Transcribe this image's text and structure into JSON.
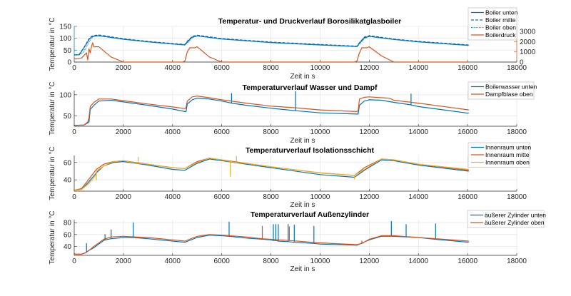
{
  "colors": {
    "blue": "#0072BD",
    "orange": "#D95319",
    "yellow": "#EDB120",
    "grid": "#e6e6e6",
    "axis": "#262626"
  },
  "chart_data": [
    {
      "type": "line",
      "title": "Temperatur- und Druckverlauf Borosilikatglasboiler",
      "xlabel": "Zeit in s",
      "ylabel": "Temperatur in °C",
      "xlim": [
        0,
        18000
      ],
      "ylim": [
        0,
        150
      ],
      "xticks": [
        0,
        2000,
        4000,
        6000,
        8000,
        10000,
        12000,
        14000,
        16000,
        18000
      ],
      "yticks": [
        0,
        50,
        100,
        150
      ],
      "y2lim": [
        0,
        3500
      ],
      "y2ticks": [
        0,
        1000,
        2000,
        3000
      ],
      "legend": "top-right",
      "series": [
        {
          "name": "Boiler unten",
          "axis": "left",
          "style": "solid",
          "color": "blue",
          "x": [
            0,
            200,
            400,
            600,
            700,
            800,
            1000,
            2000,
            3000,
            4000,
            4500,
            4600,
            4800,
            5000,
            6000,
            8000,
            10000,
            11500,
            11600,
            11800,
            12000,
            13000,
            14000,
            16050
          ],
          "y": [
            30,
            31,
            60,
            95,
            105,
            109,
            111,
            96,
            85,
            76,
            72,
            85,
            105,
            110,
            97,
            82,
            72,
            65,
            80,
            102,
            108,
            95,
            85,
            70
          ]
        },
        {
          "name": "Boiler mitte",
          "axis": "left",
          "style": "dashed",
          "color": "blue",
          "x": [
            0,
            200,
            400,
            600,
            700,
            800,
            1000,
            2000,
            3000,
            4000,
            4500,
            4600,
            4800,
            5000,
            6000,
            8000,
            10000,
            11500,
            11600,
            11800,
            12000,
            13000,
            14000,
            16050
          ],
          "y": [
            30,
            32,
            62,
            98,
            108,
            112,
            114,
            98,
            87,
            78,
            74,
            88,
            108,
            113,
            99,
            84,
            74,
            67,
            82,
            105,
            111,
            97,
            87,
            72
          ]
        },
        {
          "name": "Boiler oben",
          "axis": "left",
          "style": "dotted",
          "color": "blue",
          "x": [
            0,
            200,
            400,
            600,
            700,
            800,
            1000,
            2000,
            3000,
            4000,
            4500,
            4600,
            4800,
            5000,
            6000,
            8000,
            10000,
            11500,
            11600,
            11800,
            12000,
            13000,
            14000,
            16050
          ],
          "y": [
            30,
            30,
            45,
            85,
            100,
            108,
            111,
            96,
            85,
            76,
            72,
            80,
            102,
            110,
            97,
            82,
            72,
            65,
            74,
            98,
            108,
            95,
            85,
            70
          ]
        },
        {
          "name": "Boilerdruck",
          "axis": "right",
          "style": "solid",
          "color": "orange",
          "x": [
            0,
            300,
            500,
            550,
            600,
            650,
            700,
            750,
            800,
            1000,
            1500,
            2000,
            4400,
            4500,
            4600,
            4700,
            4900,
            5000,
            5500,
            6000,
            11400,
            11500,
            11600,
            11700,
            11900,
            12000,
            12500,
            13000,
            16050
          ],
          "y": [
            300,
            400,
            900,
            200,
            1300,
            900,
            1500,
            1900,
            1500,
            1500,
            500,
            0,
            0,
            100,
            1000,
            1400,
            1400,
            1500,
            500,
            0,
            0,
            100,
            900,
            1400,
            1400,
            1500,
            600,
            0,
            0
          ]
        }
      ]
    },
    {
      "type": "line",
      "title": "Temperaturverlauf Wasser und Dampf",
      "xlabel": "Zeit in s",
      "ylabel": "Temperatur in °C",
      "xlim": [
        0,
        18000
      ],
      "ylim": [
        25,
        110
      ],
      "xticks": [
        0,
        2000,
        4000,
        6000,
        8000,
        10000,
        12000,
        14000,
        16000,
        18000
      ],
      "yticks": [
        50,
        100
      ],
      "legend": "top-right",
      "series": [
        {
          "name": "Boilerwasser unten",
          "color": "blue",
          "x": [
            0,
            400,
            550,
            600,
            650,
            800,
            1000,
            1500,
            2000,
            3000,
            4000,
            4500,
            4550,
            4600,
            4800,
            5000,
            5500,
            6000,
            6400,
            6400,
            6400,
            7000,
            8000,
            9000,
            9000,
            9000,
            10000,
            11500,
            11550,
            11600,
            11800,
            12000,
            12500,
            13000,
            13700,
            13700,
            13700,
            14000,
            16050
          ],
          "y": [
            27,
            28,
            33,
            35,
            65,
            75,
            85,
            87,
            83,
            75,
            66,
            60,
            60,
            78,
            88,
            92,
            90,
            85,
            80,
            103,
            80,
            75,
            68,
            62,
            108,
            62,
            57,
            54,
            54,
            75,
            85,
            88,
            87,
            82,
            76,
            102,
            76,
            72,
            56
          ]
        },
        {
          "name": "Dampfblase oben",
          "color": "orange",
          "x": [
            0,
            400,
            550,
            600,
            650,
            800,
            1000,
            1500,
            2000,
            3000,
            4000,
            4500,
            4550,
            4600,
            4800,
            5000,
            5500,
            6000,
            7000,
            8000,
            9000,
            10000,
            11500,
            11550,
            11600,
            11800,
            12000,
            12500,
            12800,
            13000,
            14000,
            16050
          ],
          "y": [
            27,
            28,
            35,
            45,
            72,
            82,
            90,
            90,
            86,
            78,
            71,
            67,
            70,
            85,
            95,
            97,
            93,
            88,
            80,
            73,
            69,
            64,
            60,
            62,
            90,
            94,
            95,
            93,
            92,
            87,
            80,
            64
          ]
        }
      ]
    },
    {
      "type": "line",
      "title": "Temperaturverlauf Isolationsschicht",
      "xlabel": "Zeit in s",
      "ylabel": "Temperatur in °C",
      "xlim": [
        0,
        18000
      ],
      "ylim": [
        27,
        68
      ],
      "xticks": [
        0,
        2000,
        4000,
        6000,
        8000,
        10000,
        12000,
        14000,
        16000,
        18000
      ],
      "yticks": [
        40,
        60
      ],
      "legend": "top-right",
      "series": [
        {
          "name": "Innenraum unten",
          "color": "blue",
          "x": [
            0,
            300,
            600,
            900,
            1200,
            1600,
            2000,
            3000,
            4000,
            4500,
            5000,
            5500,
            6000,
            7000,
            8000,
            10000,
            11400,
            11800,
            12500,
            13000,
            14000,
            16050
          ],
          "y": [
            28,
            29,
            38,
            48,
            56,
            60,
            61,
            57,
            52,
            51,
            59,
            64,
            62,
            58,
            54,
            46,
            43,
            51,
            63,
            62,
            57,
            50
          ]
        },
        {
          "name": "Innenraum mitte",
          "color": "orange",
          "x": [
            0,
            300,
            600,
            900,
            1200,
            1600,
            2000,
            3000,
            4000,
            4500,
            5000,
            5500,
            6000,
            7000,
            8000,
            10000,
            11400,
            11800,
            12500,
            13000,
            14000,
            16050
          ],
          "y": [
            28,
            30,
            41,
            52,
            58,
            61,
            62,
            58,
            54,
            53,
            61,
            65,
            63,
            59,
            55,
            48,
            45,
            54,
            64,
            63,
            58,
            51
          ]
        },
        {
          "name": "Innenraum oben",
          "color": "yellow",
          "x": [
            0,
            300,
            600,
            900,
            900,
            900,
            1200,
            1600,
            2000,
            2600,
            2600,
            2600,
            3000,
            4000,
            4500,
            5000,
            5500,
            6000,
            6350,
            6350,
            6350,
            6600,
            6600,
            6600,
            7000,
            8000,
            10000,
            11400,
            11400,
            11400,
            11800,
            12500,
            13000,
            14000,
            16050
          ],
          "y": [
            28,
            29,
            36,
            46,
            40,
            50,
            56,
            61,
            62,
            59,
            66,
            59,
            58,
            54,
            53,
            60,
            65,
            63,
            61,
            44,
            61,
            60,
            67,
            60,
            59,
            55,
            48,
            45,
            41,
            45,
            52,
            64,
            63,
            58,
            52
          ]
        }
      ]
    },
    {
      "type": "line",
      "title": "Temperaturverlauf Außenzylinder",
      "xlabel": "Zeit in s",
      "ylabel": "Temperatur in °C",
      "xlim": [
        0,
        18000
      ],
      "ylim": [
        25,
        85
      ],
      "xticks": [
        0,
        2000,
        4000,
        6000,
        8000,
        10000,
        12000,
        14000,
        16000,
        18000
      ],
      "yticks": [
        40,
        60,
        80
      ],
      "legend": "top-right",
      "series": [
        {
          "name": "äußerer Zylinder unten",
          "color": "blue",
          "x": [
            0,
            300,
            500,
            500,
            500,
            800,
            1200,
            1250,
            1250,
            1250,
            1500,
            1500,
            1500,
            2000,
            2400,
            2400,
            2400,
            3000,
            4000,
            4500,
            5000,
            5500,
            6000,
            6300,
            6300,
            6300,
            7000,
            8000,
            8100,
            8100,
            8100,
            8200,
            8200,
            8200,
            8300,
            8300,
            8300,
            8700,
            8700,
            8700,
            8950,
            8950,
            8950,
            9750,
            9750,
            9750,
            10000,
            11500,
            12000,
            12500,
            12900,
            12900,
            12900,
            13500,
            13500,
            13500,
            14000,
            14700,
            14700,
            14700,
            16050
          ],
          "y": [
            27,
            27,
            30,
            45,
            31,
            38,
            50,
            51,
            60,
            51,
            53,
            68,
            53,
            55,
            55,
            80,
            55,
            53,
            49,
            47,
            55,
            59,
            58,
            57,
            81,
            57,
            54,
            51,
            50,
            77,
            50,
            50,
            77,
            50,
            49,
            77,
            49,
            48,
            77,
            48,
            47,
            76,
            47,
            45,
            74,
            45,
            44,
            42,
            51,
            57,
            57,
            82,
            57,
            56,
            77,
            56,
            55,
            52,
            78,
            52,
            47
          ]
        },
        {
          "name": "äußerer Zylinder oben",
          "color": "orange",
          "x": [
            0,
            300,
            500,
            800,
            1200,
            1500,
            2000,
            3000,
            4000,
            4500,
            5000,
            5500,
            6000,
            7000,
            7650,
            7650,
            7650,
            8000,
            8750,
            8750,
            8750,
            10000,
            11500,
            11700,
            11700,
            11700,
            12000,
            12500,
            13000,
            14000,
            16050
          ],
          "y": [
            27,
            27,
            30,
            40,
            52,
            56,
            57,
            55,
            51,
            49,
            57,
            60,
            59,
            56,
            53,
            74,
            53,
            52,
            50,
            73,
            50,
            46,
            43,
            45,
            49,
            45,
            52,
            58,
            58,
            55,
            49
          ]
        }
      ]
    }
  ]
}
